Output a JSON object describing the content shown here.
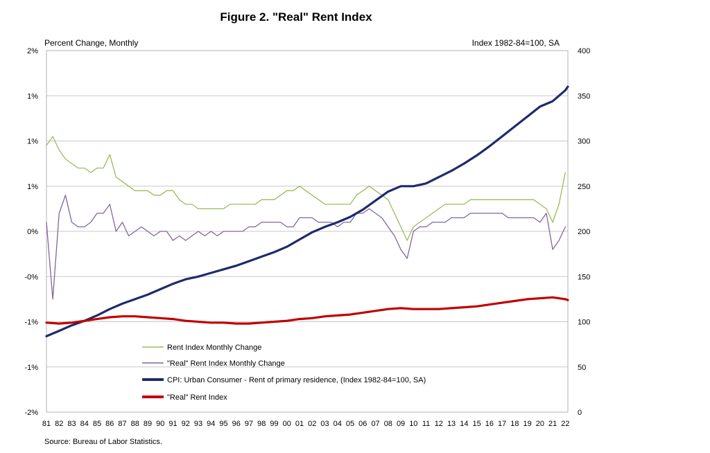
{
  "chart_data": {
    "type": "line",
    "title": "Figure 2. \"Real\" Rent Index",
    "left_axis_title": "Percent Change, Monthly",
    "right_axis_title": "Index 1982-84=100, SA",
    "source": "Source: Bureau of Labor Statistics.",
    "left_axis": {
      "ticks": [
        -2,
        -1.5,
        -1,
        -0.5,
        0,
        0.5,
        1,
        1.5,
        2
      ],
      "tick_labels": [
        "-2%",
        "-1%",
        "-1%",
        "-0%",
        "0%",
        "1%",
        "1%",
        "1%",
        "2%"
      ],
      "ylim": [
        -2,
        2
      ]
    },
    "right_axis": {
      "ticks": [
        0,
        50,
        100,
        150,
        200,
        250,
        300,
        350,
        400
      ],
      "tick_labels": [
        "0",
        "50",
        "100",
        "150",
        "200",
        "250",
        "300",
        "350",
        "400"
      ],
      "ylim": [
        0,
        400
      ]
    },
    "x_axis": {
      "tick_labels": [
        "81",
        "82",
        "83",
        "84",
        "85",
        "86",
        "87",
        "88",
        "89",
        "90",
        "91",
        "92",
        "93",
        "94",
        "95",
        "96",
        "97",
        "98",
        "99",
        "00",
        "01",
        "02",
        "03",
        "04",
        "05",
        "06",
        "07",
        "08",
        "09",
        "10",
        "11",
        "12",
        "13",
        "14",
        "15",
        "16",
        "17",
        "18",
        "19",
        "20",
        "21",
        "22"
      ],
      "xlim": [
        1981,
        2022.2
      ]
    },
    "grid": "horizontal",
    "legend_position": "bottom-left",
    "series": [
      {
        "name": "Rent Index Monthly Change",
        "axis": "left",
        "color": "#9bbb59",
        "x": [
          1981.0,
          1981.5,
          1982.0,
          1982.5,
          1983.0,
          1983.5,
          1984.0,
          1984.5,
          1985.0,
          1985.5,
          1986.0,
          1986.5,
          1987.0,
          1987.5,
          1988.0,
          1988.5,
          1989.0,
          1989.5,
          1990.0,
          1990.5,
          1991.0,
          1991.5,
          1992.0,
          1992.5,
          1993.0,
          1993.5,
          1994.0,
          1994.5,
          1995.0,
          1995.5,
          1996.0,
          1996.5,
          1997.0,
          1997.5,
          1998.0,
          1998.5,
          1999.0,
          1999.5,
          2000.0,
          2000.5,
          2001.0,
          2001.5,
          2002.0,
          2002.5,
          2003.0,
          2003.5,
          2004.0,
          2004.5,
          2005.0,
          2005.5,
          2006.0,
          2006.5,
          2007.0,
          2007.5,
          2008.0,
          2008.5,
          2009.0,
          2009.5,
          2010.0,
          2010.5,
          2011.0,
          2011.5,
          2012.0,
          2012.5,
          2013.0,
          2013.5,
          2014.0,
          2014.5,
          2015.0,
          2015.5,
          2016.0,
          2016.5,
          2017.0,
          2017.5,
          2018.0,
          2018.5,
          2019.0,
          2019.5,
          2020.0,
          2020.5,
          2021.0,
          2021.5,
          2022.0
        ],
        "values": [
          0.95,
          1.05,
          0.9,
          0.8,
          0.75,
          0.7,
          0.7,
          0.65,
          0.7,
          0.7,
          0.85,
          0.6,
          0.55,
          0.5,
          0.45,
          0.45,
          0.45,
          0.4,
          0.4,
          0.45,
          0.45,
          0.35,
          0.3,
          0.3,
          0.25,
          0.25,
          0.25,
          0.25,
          0.25,
          0.3,
          0.3,
          0.3,
          0.3,
          0.3,
          0.35,
          0.35,
          0.35,
          0.4,
          0.45,
          0.45,
          0.5,
          0.45,
          0.4,
          0.35,
          0.3,
          0.3,
          0.3,
          0.3,
          0.3,
          0.4,
          0.45,
          0.5,
          0.45,
          0.4,
          0.35,
          0.2,
          0.05,
          -0.1,
          0.05,
          0.1,
          0.15,
          0.2,
          0.25,
          0.3,
          0.3,
          0.3,
          0.3,
          0.35,
          0.35,
          0.35,
          0.35,
          0.35,
          0.35,
          0.35,
          0.35,
          0.35,
          0.35,
          0.35,
          0.3,
          0.25,
          0.1,
          0.3,
          0.65
        ]
      },
      {
        "name": "\"Real\" Rent Index Monthly Change",
        "axis": "left",
        "color": "#8064a2",
        "x": [
          1981.0,
          1981.5,
          1982.0,
          1982.5,
          1983.0,
          1983.5,
          1984.0,
          1984.5,
          1985.0,
          1985.5,
          1986.0,
          1986.5,
          1987.0,
          1987.5,
          1988.0,
          1988.5,
          1989.0,
          1989.5,
          1990.0,
          1990.5,
          1991.0,
          1991.5,
          1992.0,
          1992.5,
          1993.0,
          1993.5,
          1994.0,
          1994.5,
          1995.0,
          1995.5,
          1996.0,
          1996.5,
          1997.0,
          1997.5,
          1998.0,
          1998.5,
          1999.0,
          1999.5,
          2000.0,
          2000.5,
          2001.0,
          2001.5,
          2002.0,
          2002.5,
          2003.0,
          2003.5,
          2004.0,
          2004.5,
          2005.0,
          2005.5,
          2006.0,
          2006.5,
          2007.0,
          2007.5,
          2008.0,
          2008.5,
          2009.0,
          2009.5,
          2010.0,
          2010.5,
          2011.0,
          2011.5,
          2012.0,
          2012.5,
          2013.0,
          2013.5,
          2014.0,
          2014.5,
          2015.0,
          2015.5,
          2016.0,
          2016.5,
          2017.0,
          2017.5,
          2018.0,
          2018.5,
          2019.0,
          2019.5,
          2020.0,
          2020.5,
          2021.0,
          2021.5,
          2022.0
        ],
        "values": [
          0.1,
          -0.75,
          0.2,
          0.4,
          0.1,
          0.05,
          0.05,
          0.1,
          0.2,
          0.2,
          0.3,
          0.0,
          0.1,
          -0.05,
          0.0,
          0.05,
          0.0,
          -0.05,
          0.0,
          0.0,
          -0.1,
          -0.05,
          -0.1,
          -0.05,
          0.0,
          -0.05,
          0.0,
          -0.05,
          0.0,
          0.0,
          0.0,
          0.0,
          0.05,
          0.05,
          0.1,
          0.1,
          0.1,
          0.1,
          0.05,
          0.05,
          0.15,
          0.15,
          0.15,
          0.1,
          0.1,
          0.1,
          0.05,
          0.1,
          0.1,
          0.2,
          0.2,
          0.25,
          0.2,
          0.15,
          0.05,
          -0.05,
          -0.2,
          -0.3,
          0.0,
          0.05,
          0.05,
          0.1,
          0.1,
          0.1,
          0.15,
          0.15,
          0.15,
          0.2,
          0.2,
          0.2,
          0.2,
          0.2,
          0.2,
          0.15,
          0.15,
          0.15,
          0.15,
          0.15,
          0.1,
          0.2,
          -0.2,
          -0.1,
          0.05
        ]
      },
      {
        "name": "CPI: Urban Consumer - Rent of primary residence, (Index 1982-84=100, SA)",
        "axis": "right",
        "color": "#1f2a6b",
        "x": [
          1981.0,
          1982.0,
          1983.0,
          1984.0,
          1985.0,
          1986.0,
          1987.0,
          1988.0,
          1989.0,
          1990.0,
          1991.0,
          1992.0,
          1993.0,
          1994.0,
          1995.0,
          1996.0,
          1997.0,
          1998.0,
          1999.0,
          2000.0,
          2001.0,
          2002.0,
          2003.0,
          2004.0,
          2005.0,
          2006.0,
          2007.0,
          2008.0,
          2009.0,
          2010.0,
          2011.0,
          2012.0,
          2013.0,
          2014.0,
          2015.0,
          2016.0,
          2017.0,
          2018.0,
          2019.0,
          2020.0,
          2021.0,
          2022.0,
          2022.2
        ],
        "values": [
          84,
          90,
          96,
          101,
          107,
          114,
          120,
          125,
          130,
          136,
          142,
          147,
          150,
          154,
          158,
          162,
          167,
          172,
          177,
          183,
          191,
          199,
          205,
          210,
          216,
          224,
          234,
          244,
          250,
          250,
          253,
          260,
          267,
          275,
          284,
          294,
          305,
          316,
          327,
          338,
          344,
          356,
          360
        ]
      },
      {
        "name": "\"Real\" Rent Index",
        "axis": "right",
        "color": "#c00000",
        "x": [
          1981.0,
          1982.0,
          1983.0,
          1984.0,
          1985.0,
          1986.0,
          1987.0,
          1988.0,
          1989.0,
          1990.0,
          1991.0,
          1992.0,
          1993.0,
          1994.0,
          1995.0,
          1996.0,
          1997.0,
          1998.0,
          1999.0,
          2000.0,
          2001.0,
          2002.0,
          2003.0,
          2004.0,
          2005.0,
          2006.0,
          2007.0,
          2008.0,
          2009.0,
          2010.0,
          2011.0,
          2012.0,
          2013.0,
          2014.0,
          2015.0,
          2016.0,
          2017.0,
          2018.0,
          2019.0,
          2020.0,
          2021.0,
          2022.0,
          2022.2
        ],
        "values": [
          99,
          98,
          99,
          101,
          103,
          105,
          106,
          106,
          105,
          104,
          103,
          101,
          100,
          99,
          99,
          98,
          98,
          99,
          100,
          101,
          103,
          104,
          106,
          107,
          108,
          110,
          112,
          114,
          115,
          114,
          114,
          114,
          115,
          116,
          117,
          119,
          121,
          123,
          125,
          126,
          127,
          125,
          124
        ]
      }
    ]
  }
}
